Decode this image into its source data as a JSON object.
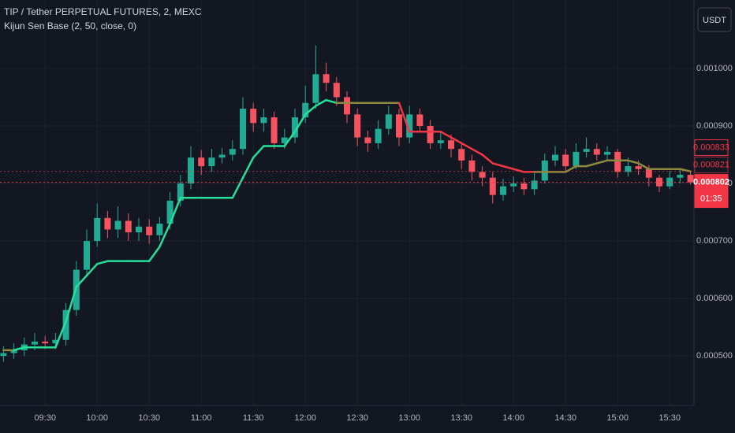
{
  "chart_data": {
    "type": "candlestick",
    "title": "TIP / Tether PERPETUAL FUTURES, 2, MEXC",
    "indicator": "Kijun Sen Base (2, 50, close, 0)",
    "currency_button": "USDT",
    "x": [
      546,
      552,
      558,
      564,
      570,
      576,
      582,
      588,
      594,
      600,
      606,
      612,
      618,
      624,
      630,
      636,
      642,
      648,
      654,
      660,
      666,
      672,
      678,
      684,
      690,
      696,
      702,
      708,
      714,
      720,
      726,
      732,
      738,
      744,
      750,
      756,
      762,
      768,
      774,
      780,
      786,
      792,
      798,
      804,
      810,
      816,
      822,
      828,
      834,
      840,
      846,
      852,
      858,
      864,
      870,
      876,
      882,
      888,
      894,
      900,
      906,
      912,
      918,
      924,
      930,
      936,
      942
    ],
    "open": [
      0.0005,
      0.000505,
      0.00051,
      0.00052,
      0.000525,
      0.000522,
      0.000528,
      0.00058,
      0.00065,
      0.0007,
      0.00074,
      0.00072,
      0.000735,
      0.000715,
      0.000725,
      0.00071,
      0.00073,
      0.00077,
      0.0008,
      0.000845,
      0.00083,
      0.000845,
      0.00085,
      0.00086,
      0.00093,
      0.000905,
      0.000915,
      0.00087,
      0.00088,
      0.000915,
      0.00094,
      0.00099,
      0.000975,
      0.00095,
      0.00092,
      0.00088,
      0.00087,
      0.000895,
      0.00092,
      0.00088,
      0.00092,
      0.0009,
      0.00087,
      0.000875,
      0.00086,
      0.00084,
      0.00082,
      0.00081,
      0.00078,
      0.000795,
      0.0008,
      0.00079,
      0.000805,
      0.00084,
      0.00085,
      0.00083,
      0.000855,
      0.00086,
      0.00085,
      0.000855,
      0.00082,
      0.00083,
      0.000825,
      0.00081,
      0.000795,
      0.00081,
      0.000815
    ],
    "high": [
      0.000517,
      0.000522,
      0.000532,
      0.00054,
      0.000535,
      0.00054,
      0.000592,
      0.000665,
      0.00072,
      0.000765,
      0.000752,
      0.00076,
      0.000748,
      0.00074,
      0.000738,
      0.000742,
      0.000785,
      0.000815,
      0.000865,
      0.000858,
      0.00086,
      0.000862,
      0.000875,
      0.00095,
      0.00094,
      0.00093,
      0.000925,
      0.000895,
      0.00093,
      0.00097,
      0.00104,
      0.00101,
      0.000985,
      0.00096,
      0.00093,
      0.000892,
      0.00091,
      0.000935,
      0.00093,
      0.000935,
      0.00093,
      0.00091,
      0.00089,
      0.000885,
      0.00087,
      0.00085,
      0.00083,
      0.00082,
      0.000808,
      0.000812,
      0.00081,
      0.000818,
      0.000852,
      0.000865,
      0.00086,
      0.00087,
      0.00088,
      0.00087,
      0.000865,
      0.00086,
      0.000845,
      0.00084,
      0.000832,
      0.000815,
      0.000822,
      0.000825,
      0.00082
    ],
    "low": [
      0.00049,
      0.000495,
      0.0005,
      0.00051,
      0.000512,
      0.000512,
      0.000518,
      0.00057,
      0.00064,
      0.00069,
      0.000705,
      0.000705,
      0.0007,
      0.0007,
      0.000695,
      0.0007,
      0.00072,
      0.00076,
      0.00079,
      0.000815,
      0.00082,
      0.000835,
      0.00084,
      0.00085,
      0.00089,
      0.00089,
      0.00086,
      0.00086,
      0.00087,
      0.000905,
      0.00093,
      0.00096,
      0.000935,
      0.000905,
      0.000865,
      0.000855,
      0.00086,
      0.000885,
      0.000865,
      0.00087,
      0.00089,
      0.00086,
      0.00086,
      0.000845,
      0.000825,
      0.000805,
      0.000795,
      0.000765,
      0.00077,
      0.000785,
      0.00078,
      0.00078,
      0.0008,
      0.00083,
      0.00082,
      0.000825,
      0.000845,
      0.00084,
      0.00084,
      0.00081,
      0.000812,
      0.000815,
      0.000795,
      0.000785,
      0.00079,
      0.0008,
      0.000798
    ],
    "close": [
      0.000505,
      0.00051,
      0.00052,
      0.000525,
      0.000522,
      0.000528,
      0.00058,
      0.00065,
      0.0007,
      0.00074,
      0.00072,
      0.000735,
      0.000715,
      0.000725,
      0.00071,
      0.00073,
      0.00077,
      0.0008,
      0.000845,
      0.00083,
      0.000845,
      0.00085,
      0.00086,
      0.00093,
      0.000905,
      0.000915,
      0.00087,
      0.00088,
      0.000915,
      0.00094,
      0.00099,
      0.000975,
      0.00095,
      0.00092,
      0.00088,
      0.00087,
      0.000895,
      0.00092,
      0.00088,
      0.00092,
      0.0009,
      0.00087,
      0.000875,
      0.00086,
      0.00084,
      0.00082,
      0.00081,
      0.00078,
      0.000795,
      0.0008,
      0.00079,
      0.000805,
      0.00084,
      0.00085,
      0.00083,
      0.000855,
      0.00086,
      0.00085,
      0.000855,
      0.00082,
      0.00083,
      0.000825,
      0.00081,
      0.000795,
      0.00081,
      0.000815,
      0.000802
    ],
    "up_color": "#22ab94",
    "down_color": "#f7525f",
    "kijun": {
      "values": [
        0.00051,
        0.00051,
        0.000515,
        0.000515,
        0.000515,
        0.000515,
        0.00056,
        0.00062,
        0.00064,
        0.00066,
        0.000665,
        0.000665,
        0.000665,
        0.000665,
        0.000665,
        0.00069,
        0.00073,
        0.000775,
        0.000775,
        0.000775,
        0.000775,
        0.000775,
        0.000775,
        0.00081,
        0.000845,
        0.000865,
        0.000865,
        0.000865,
        0.00089,
        0.00092,
        0.000935,
        0.000945,
        0.00094,
        0.00094,
        0.00094,
        0.00094,
        0.00094,
        0.00094,
        0.00094,
        0.00089,
        0.00089,
        0.00089,
        0.00089,
        0.00088,
        0.00087,
        0.00086,
        0.00085,
        0.000835,
        0.00083,
        0.000825,
        0.00082,
        0.00082,
        0.00082,
        0.00082,
        0.00082,
        0.00083,
        0.00083,
        0.000835,
        0.00084,
        0.00084,
        0.00084,
        0.000835,
        0.000825,
        0.000825,
        0.000825,
        0.000825,
        0.000821
      ],
      "colors": [
        "#8b8a3e",
        "#8b8a3e",
        "#26e09a",
        "#26e09a",
        "#26e09a",
        "#26e09a",
        "#26e09a",
        "#26e09a",
        "#26e09a",
        "#26e09a",
        "#26e09a",
        "#26e09a",
        "#26e09a",
        "#26e09a",
        "#26e09a",
        "#26e09a",
        "#26e09a",
        "#26e09a",
        "#26e09a",
        "#26e09a",
        "#26e09a",
        "#26e09a",
        "#26e09a",
        "#26e09a",
        "#26e09a",
        "#26e09a",
        "#26e09a",
        "#26e09a",
        "#26e09a",
        "#26e09a",
        "#26e09a",
        "#26e09a",
        "#26e09a",
        "#8b8a3e",
        "#8b8a3e",
        "#8b8a3e",
        "#8b8a3e",
        "#8b8a3e",
        "#8b8a3e",
        "#f23645",
        "#f23645",
        "#f23645",
        "#f23645",
        "#f23645",
        "#f23645",
        "#f23645",
        "#f23645",
        "#f23645",
        "#f23645",
        "#f23645",
        "#f23645",
        "#f23645",
        "#8b8a3e",
        "#8b8a3e",
        "#8b8a3e",
        "#8b8a3e",
        "#8b8a3e",
        "#8b8a3e",
        "#8b8a3e",
        "#8b8a3e",
        "#8b8a3e",
        "#8b8a3e",
        "#8b8a3e",
        "#8b8a3e",
        "#8b8a3e",
        "#8b8a3e",
        "#8b8a3e"
      ]
    },
    "xlim": [
      544,
      944
    ],
    "xticks": [
      {
        "value": 570,
        "label": "09:30"
      },
      {
        "value": 600,
        "label": "10:00"
      },
      {
        "value": 630,
        "label": "10:30"
      },
      {
        "value": 660,
        "label": "11:00"
      },
      {
        "value": 690,
        "label": "11:30"
      },
      {
        "value": 720,
        "label": "12:00"
      },
      {
        "value": 750,
        "label": "12:30"
      },
      {
        "value": 780,
        "label": "13:00"
      },
      {
        "value": 810,
        "label": "13:30"
      },
      {
        "value": 840,
        "label": "14:00"
      },
      {
        "value": 870,
        "label": "14:30"
      },
      {
        "value": 900,
        "label": "15:00"
      },
      {
        "value": 930,
        "label": "15:30"
      }
    ],
    "ylim": [
      0.000414,
      0.001119
    ],
    "yticks": [
      {
        "value": 0.0005,
        "label": "0.000500"
      },
      {
        "value": 0.0006,
        "label": "0.000600"
      },
      {
        "value": 0.0007,
        "label": "0.000700"
      },
      {
        "value": 0.0008,
        "label": "0.000800"
      },
      {
        "value": 0.0009,
        "label": "0.000900"
      },
      {
        "value": 0.001,
        "label": "0.001000"
      }
    ],
    "grid": true,
    "price_labels": [
      {
        "value": 0.000833,
        "label": "0.000833",
        "color": "#f23645",
        "style": "outline",
        "line": false
      },
      {
        "value": 0.000821,
        "label": "0.000821",
        "color": "#f23645",
        "style": "dim",
        "line": true
      },
      {
        "value": 0.000802,
        "label": "0.000802",
        "color": "#f23645",
        "style": "filled",
        "line": true
      }
    ],
    "countdown": "01:35"
  }
}
